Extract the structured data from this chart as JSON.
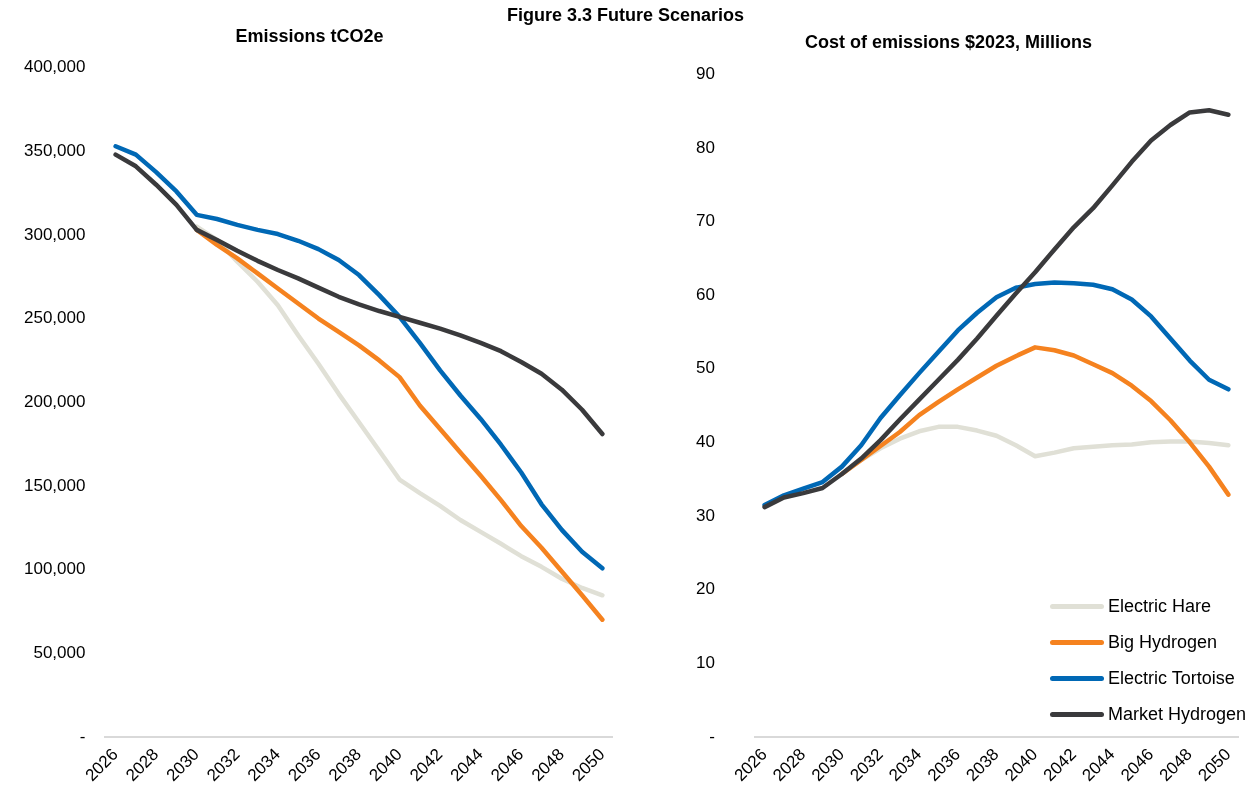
{
  "chart_data": [
    {
      "type": "line",
      "title": "Figure 3.3 Future Scenarios",
      "subtitle": "Emissions tCO2e",
      "categories": [
        "2026",
        null,
        "2028",
        null,
        "2030",
        null,
        "2032",
        null,
        "2034",
        null,
        "2036",
        null,
        "2038",
        null,
        "2040",
        null,
        "2042",
        null,
        "2044",
        null,
        "2046",
        null,
        "2048",
        null,
        "2050"
      ],
      "series": [
        {
          "color": "#e0e0d6",
          "values": [
            null,
            null,
            null,
            null,
            305000,
            297000,
            284000,
            272000,
            258000,
            240000,
            223000,
            205000,
            188000,
            171000,
            153800,
            145700,
            138000,
            129600,
            122500,
            115400,
            108000,
            101600,
            94500,
            89000,
            84600
          ]
        },
        {
          "color": "#f5821f",
          "values": [
            null,
            null,
            null,
            null,
            303000,
            294000,
            286000,
            277000,
            268000,
            259000,
            250000,
            242000,
            234000,
            225000,
            215000,
            198000,
            184000,
            170000,
            156000,
            141500,
            126000,
            113000,
            98800,
            84600,
            70000
          ]
        },
        {
          "color": "#0068b5",
          "values": [
            353000,
            348000,
            337500,
            326000,
            312000,
            309500,
            306000,
            303000,
            300500,
            296500,
            291500,
            285000,
            276000,
            264000,
            251000,
            235500,
            219000,
            204000,
            190000,
            174600,
            158000,
            139000,
            123700,
            110600,
            100700
          ]
        },
        {
          "color": "#3a3a3c",
          "values": [
            348000,
            341000,
            330000,
            318000,
            303000,
            297000,
            290500,
            284500,
            279000,
            274000,
            268500,
            263000,
            258500,
            254500,
            251000,
            247500,
            244000,
            240000,
            235500,
            230500,
            224000,
            217000,
            207500,
            195500,
            181000
          ]
        }
      ],
      "ylim": [
        0,
        400000
      ],
      "yticks": [
        {
          "value": 0,
          "label": "-"
        },
        {
          "value": 50000,
          "label": "50,000"
        },
        {
          "value": 100000,
          "label": "100,000"
        },
        {
          "value": 150000,
          "label": "150,000"
        },
        {
          "value": 200000,
          "label": "200,000"
        },
        {
          "value": 250000,
          "label": "250,000"
        },
        {
          "value": 300000,
          "label": "300,000"
        },
        {
          "value": 350000,
          "label": "350,000"
        },
        {
          "value": 400000,
          "label": "400,000"
        }
      ],
      "marker": "none",
      "legend": false
    },
    {
      "type": "line",
      "title": "Cost of emissions $2023, Millions",
      "categories": [
        "2026",
        null,
        "2028",
        null,
        "2030",
        null,
        "2032",
        null,
        "2034",
        null,
        "2036",
        null,
        "2038",
        null,
        "2040",
        null,
        "2042",
        null,
        "2044",
        null,
        "2046",
        null,
        "2048",
        null,
        "2050"
      ],
      "series": [
        {
          "name": "Electric Hare",
          "color": "#e0e0d6",
          "values": [
            null,
            null,
            null,
            null,
            35.7,
            37.6,
            39.2,
            40.5,
            41.5,
            42.1,
            42.1,
            41.6,
            40.9,
            39.6,
            38.1,
            38.6,
            39.2,
            39.4,
            39.6,
            39.7,
            40.0,
            40.1,
            40.1,
            39.9,
            39.6
          ]
        },
        {
          "name": "Big Hydrogen",
          "color": "#f5821f",
          "values": [
            null,
            null,
            null,
            null,
            35.7,
            37.6,
            39.5,
            41.4,
            43.7,
            45.5,
            47.2,
            48.8,
            50.4,
            51.7,
            52.9,
            52.5,
            51.8,
            50.6,
            49.4,
            47.7,
            45.6,
            43.0,
            40.0,
            36.7,
            32.9
          ]
        },
        {
          "name": "Electric Tortoise",
          "color": "#0068b5",
          "values": [
            31.5,
            32.8,
            33.7,
            34.6,
            36.7,
            39.6,
            43.3,
            46.4,
            49.4,
            52.3,
            55.2,
            57.6,
            59.7,
            61.0,
            61.5,
            61.7,
            61.6,
            61.4,
            60.8,
            59.4,
            57.1,
            54.1,
            51.1,
            48.5,
            47.2
          ]
        },
        {
          "name": "Market Hydrogen",
          "color": "#3a3a3c",
          "values": [
            31.2,
            32.5,
            33.1,
            33.8,
            35.7,
            37.8,
            40.3,
            43.1,
            45.8,
            48.5,
            51.2,
            54.1,
            57.2,
            60.2,
            63.1,
            66.2,
            69.2,
            71.8,
            74.9,
            78.1,
            81.0,
            83.1,
            84.8,
            85.1,
            84.5
          ]
        }
      ],
      "ylim": [
        0,
        90
      ],
      "yticks": [
        {
          "value": 0,
          "label": "-"
        },
        10,
        20,
        30,
        40,
        50,
        60,
        70,
        80,
        90
      ],
      "marker": "none",
      "legend": "bottom right"
    }
  ]
}
